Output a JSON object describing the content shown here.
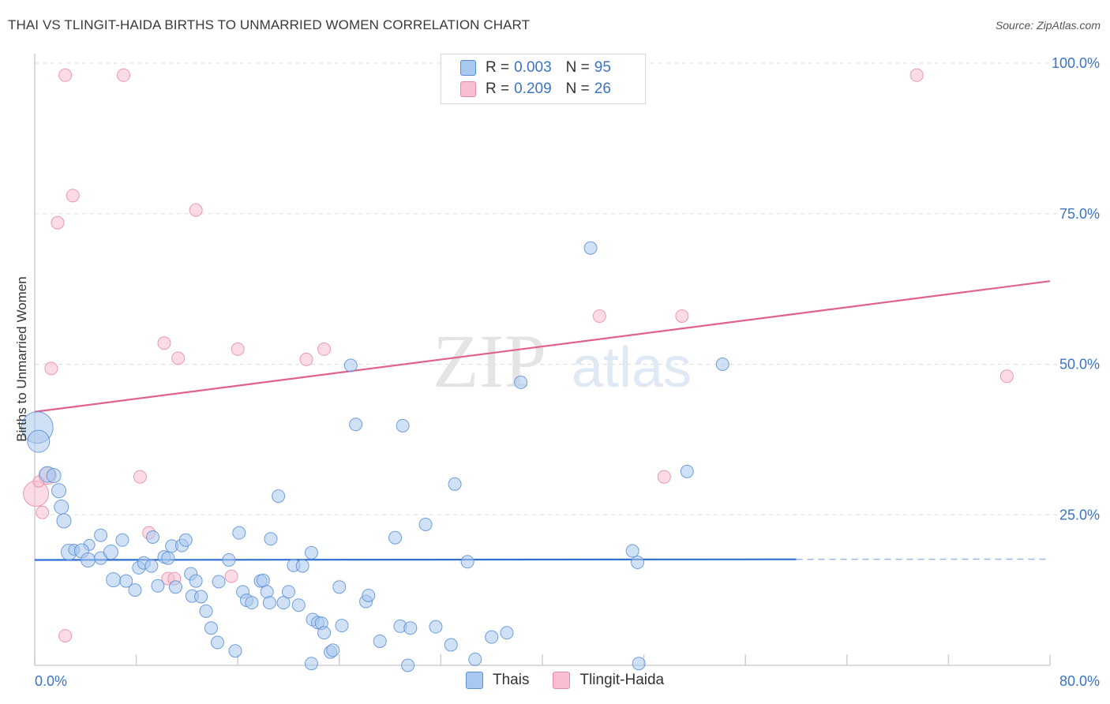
{
  "header": {
    "title": "THAI VS TLINGIT-HAIDA BIRTHS TO UNMARRIED WOMEN CORRELATION CHART",
    "source": "Source: ZipAtlas.com"
  },
  "legend": {
    "rows": [
      {
        "r_label": "R =",
        "r_value": "0.003",
        "n_label": "N =",
        "n_value": "95"
      },
      {
        "r_label": "R =",
        "r_value": "0.209",
        "n_label": "N =",
        "n_value": "26"
      }
    ],
    "bottom": [
      "Thais",
      "Tlingit-Haida"
    ]
  },
  "colors": {
    "thais_fill": "#a9c8ef",
    "thais_stroke": "#5b8fd6",
    "thais_line": "#2f6fd0",
    "tlingit_fill": "#f7bfd0",
    "tlingit_stroke": "#e88aa6",
    "tlingit_line": "#e0628c",
    "axis_label": "#3b73c8",
    "grid": "#dddddd"
  },
  "watermark": {
    "zip": "ZIP",
    "atlas": "atlas"
  },
  "chart_data": {
    "type": "scatter",
    "title": "THAI VS TLINGIT-HAIDA BIRTHS TO UNMARRIED WOMEN CORRELATION CHART",
    "xlabel": "",
    "ylabel": "Births to Unmarried Women",
    "xlim": [
      0,
      80
    ],
    "ylim": [
      0,
      100
    ],
    "x_tick_labels": [
      "0.0%",
      "80.0%"
    ],
    "y_tick_labels": [
      "25.0%",
      "50.0%",
      "75.0%",
      "100.0%"
    ],
    "y_ticks": [
      25,
      50,
      75,
      100
    ],
    "grid": true,
    "legend_position": "top-center",
    "series": [
      {
        "name": "Thais",
        "r": 0.003,
        "n": 95,
        "trend": {
          "x": [
            0,
            60
          ],
          "y": [
            17.5,
            17.6
          ],
          "dashed_extension_to": 80
        },
        "points": [
          [
            0.2,
            39.5,
            20
          ],
          [
            0.3,
            37.2,
            14
          ],
          [
            1.0,
            31.7,
            10
          ],
          [
            1.5,
            31.5,
            9
          ],
          [
            1.9,
            29.0,
            9
          ],
          [
            2.1,
            26.3,
            9
          ],
          [
            2.3,
            24.0,
            9
          ],
          [
            2.7,
            18.8,
            10
          ],
          [
            3.1,
            19.2,
            7
          ],
          [
            4.3,
            20.0,
            7
          ],
          [
            3.7,
            19.0,
            9
          ],
          [
            4.2,
            17.5,
            9
          ],
          [
            5.2,
            21.6,
            8
          ],
          [
            5.2,
            17.8,
            8
          ],
          [
            6.0,
            18.8,
            9
          ],
          [
            6.2,
            14.2,
            9
          ],
          [
            6.9,
            20.8,
            8
          ],
          [
            7.2,
            14.0,
            8
          ],
          [
            7.9,
            12.5,
            8
          ],
          [
            8.2,
            16.2,
            8
          ],
          [
            8.6,
            17.0,
            8
          ],
          [
            9.2,
            16.5,
            8
          ],
          [
            9.3,
            21.3,
            8
          ],
          [
            9.7,
            13.2,
            8
          ],
          [
            10.2,
            18.0,
            8
          ],
          [
            10.5,
            17.8,
            8
          ],
          [
            10.8,
            19.8,
            8
          ],
          [
            11.1,
            13.0,
            8
          ],
          [
            11.6,
            19.9,
            8
          ],
          [
            11.9,
            20.8,
            8
          ],
          [
            12.3,
            15.2,
            8
          ],
          [
            12.4,
            11.5,
            8
          ],
          [
            12.7,
            14.0,
            8
          ],
          [
            13.1,
            11.4,
            8
          ],
          [
            13.5,
            9.0,
            8
          ],
          [
            13.9,
            6.2,
            8
          ],
          [
            14.4,
            3.8,
            8
          ],
          [
            14.5,
            13.9,
            8
          ],
          [
            15.3,
            17.5,
            8
          ],
          [
            15.8,
            2.4,
            8
          ],
          [
            16.1,
            22.0,
            8
          ],
          [
            16.4,
            12.2,
            8
          ],
          [
            16.7,
            10.8,
            8
          ],
          [
            17.1,
            10.4,
            8
          ],
          [
            17.8,
            14.0,
            8
          ],
          [
            18.0,
            14.1,
            8
          ],
          [
            18.3,
            12.2,
            8
          ],
          [
            18.5,
            10.4,
            8
          ],
          [
            18.6,
            21.0,
            8
          ],
          [
            19.2,
            28.1,
            8
          ],
          [
            19.6,
            10.4,
            8
          ],
          [
            20.0,
            12.2,
            8
          ],
          [
            20.4,
            16.6,
            8
          ],
          [
            20.8,
            10.0,
            8
          ],
          [
            21.1,
            16.5,
            8
          ],
          [
            21.8,
            18.7,
            8
          ],
          [
            21.8,
            0.3,
            8
          ],
          [
            21.9,
            7.6,
            8
          ],
          [
            22.3,
            7.1,
            8
          ],
          [
            22.6,
            7.0,
            8
          ],
          [
            22.8,
            5.4,
            8
          ],
          [
            23.3,
            2.2,
            8
          ],
          [
            23.5,
            2.5,
            8
          ],
          [
            24.0,
            13.0,
            8
          ],
          [
            24.2,
            6.6,
            8
          ],
          [
            24.9,
            49.8,
            8
          ],
          [
            25.3,
            40.0,
            8
          ],
          [
            26.1,
            10.6,
            8
          ],
          [
            26.3,
            11.6,
            8
          ],
          [
            27.2,
            4.0,
            8
          ],
          [
            28.4,
            21.2,
            8
          ],
          [
            28.8,
            6.5,
            8
          ],
          [
            29.0,
            39.8,
            8
          ],
          [
            29.4,
            0.0,
            8
          ],
          [
            29.6,
            6.2,
            8
          ],
          [
            30.8,
            23.4,
            8
          ],
          [
            31.6,
            6.4,
            8
          ],
          [
            32.8,
            3.4,
            8
          ],
          [
            33.1,
            30.1,
            8
          ],
          [
            34.1,
            17.2,
            8
          ],
          [
            34.7,
            1.0,
            8
          ],
          [
            36.0,
            4.7,
            8
          ],
          [
            37.2,
            5.4,
            8
          ],
          [
            38.3,
            47.0,
            8
          ],
          [
            43.8,
            69.3,
            8
          ],
          [
            47.1,
            19.0,
            8
          ],
          [
            47.5,
            17.1,
            8
          ],
          [
            47.6,
            0.3,
            8
          ],
          [
            51.4,
            32.2,
            8
          ],
          [
            54.2,
            50.0,
            8
          ]
        ]
      },
      {
        "name": "Tlingit-Haida",
        "r": 0.209,
        "n": 26,
        "trend": {
          "x": [
            0,
            80
          ],
          "y": [
            42.1,
            63.8
          ]
        },
        "points": [
          [
            0.1,
            28.5,
            16
          ],
          [
            1.0,
            31.5,
            11
          ],
          [
            0.6,
            25.4,
            8
          ],
          [
            1.3,
            49.3,
            8
          ],
          [
            1.8,
            73.5,
            8
          ],
          [
            2.4,
            98.0,
            8
          ],
          [
            2.4,
            4.9,
            8
          ],
          [
            3.0,
            78.0,
            8
          ],
          [
            7.0,
            98.0,
            8
          ],
          [
            8.3,
            31.3,
            8
          ],
          [
            9.0,
            22.0,
            8
          ],
          [
            10.2,
            53.5,
            8
          ],
          [
            10.5,
            14.4,
            8
          ],
          [
            11.0,
            14.4,
            8
          ],
          [
            11.3,
            51.0,
            8
          ],
          [
            12.7,
            75.6,
            8
          ],
          [
            15.5,
            14.8,
            8
          ],
          [
            16.0,
            52.5,
            8
          ],
          [
            21.4,
            50.8,
            8
          ],
          [
            22.8,
            52.5,
            8
          ],
          [
            44.5,
            58.0,
            8
          ],
          [
            49.6,
            31.3,
            8
          ],
          [
            51.0,
            58.0,
            8
          ],
          [
            69.5,
            98.0,
            8
          ],
          [
            76.6,
            48.0,
            8
          ],
          [
            0.3,
            30.5,
            7
          ]
        ]
      }
    ]
  }
}
